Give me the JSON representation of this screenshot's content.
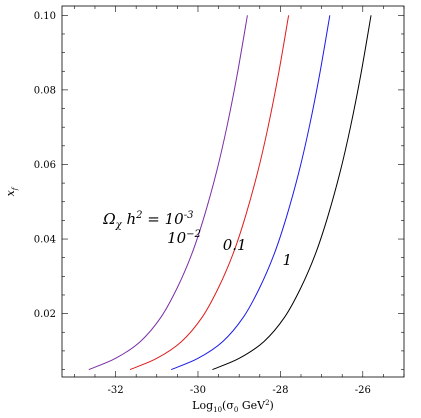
{
  "chart_data": {
    "type": "line",
    "xlabel": "Log10(σ0 GeV²)",
    "ylabel": "xf",
    "xlim": [
      -33.3,
      -25.0
    ],
    "ylim": [
      0.003,
      0.1025
    ],
    "x_ticks": [
      -32,
      -30,
      -28,
      -26
    ],
    "y_ticks": [
      0.02,
      0.04,
      0.06,
      0.08,
      0.1
    ],
    "grid": false,
    "series": [
      {
        "name": "Ωχ h² = 10⁻³",
        "color": "#7a2ea8",
        "points": [
          [
            -32.65,
            0.005
          ],
          [
            -32.0,
            0.008
          ],
          [
            -31.4,
            0.0125
          ],
          [
            -30.9,
            0.019
          ],
          [
            -30.5,
            0.027
          ],
          [
            -30.15,
            0.036
          ],
          [
            -29.85,
            0.046
          ],
          [
            -29.55,
            0.058
          ],
          [
            -29.3,
            0.07
          ],
          [
            -29.05,
            0.084
          ],
          [
            -28.8,
            0.1
          ]
        ]
      },
      {
        "name": "10⁻²",
        "color": "#e01c1c",
        "points": [
          [
            -31.65,
            0.005
          ],
          [
            -31.0,
            0.008
          ],
          [
            -30.4,
            0.0125
          ],
          [
            -29.9,
            0.019
          ],
          [
            -29.5,
            0.027
          ],
          [
            -29.15,
            0.036
          ],
          [
            -28.85,
            0.046
          ],
          [
            -28.55,
            0.058
          ],
          [
            -28.3,
            0.07
          ],
          [
            -28.05,
            0.084
          ],
          [
            -27.8,
            0.1
          ]
        ]
      },
      {
        "name": "0.1",
        "color": "#1a1aee",
        "points": [
          [
            -30.65,
            0.005
          ],
          [
            -30.0,
            0.008
          ],
          [
            -29.4,
            0.0125
          ],
          [
            -28.9,
            0.019
          ],
          [
            -28.5,
            0.027
          ],
          [
            -28.15,
            0.036
          ],
          [
            -27.85,
            0.046
          ],
          [
            -27.55,
            0.058
          ],
          [
            -27.3,
            0.07
          ],
          [
            -27.05,
            0.084
          ],
          [
            -26.8,
            0.1
          ]
        ]
      },
      {
        "name": "1",
        "color": "#000000",
        "points": [
          [
            -29.65,
            0.005
          ],
          [
            -29.0,
            0.008
          ],
          [
            -28.4,
            0.0125
          ],
          [
            -27.9,
            0.019
          ],
          [
            -27.5,
            0.027
          ],
          [
            -27.15,
            0.036
          ],
          [
            -26.85,
            0.046
          ],
          [
            -26.55,
            0.058
          ],
          [
            -26.3,
            0.07
          ],
          [
            -26.05,
            0.084
          ],
          [
            -25.8,
            0.1
          ]
        ]
      }
    ],
    "annotations": [
      {
        "text_main": "Ω",
        "sub": "χ",
        "text_mid": " h",
        "sup": "2",
        "text_tail": " = 10",
        "sup2": "-3",
        "x": -32.3,
        "y": 0.044
      },
      {
        "text_main": "10",
        "sup": "−2",
        "x": -30.75,
        "y": 0.039
      },
      {
        "text_main": "0.1",
        "x": -29.4,
        "y": 0.037
      },
      {
        "text_main": "1",
        "x": -27.95,
        "y": 0.033
      }
    ]
  }
}
